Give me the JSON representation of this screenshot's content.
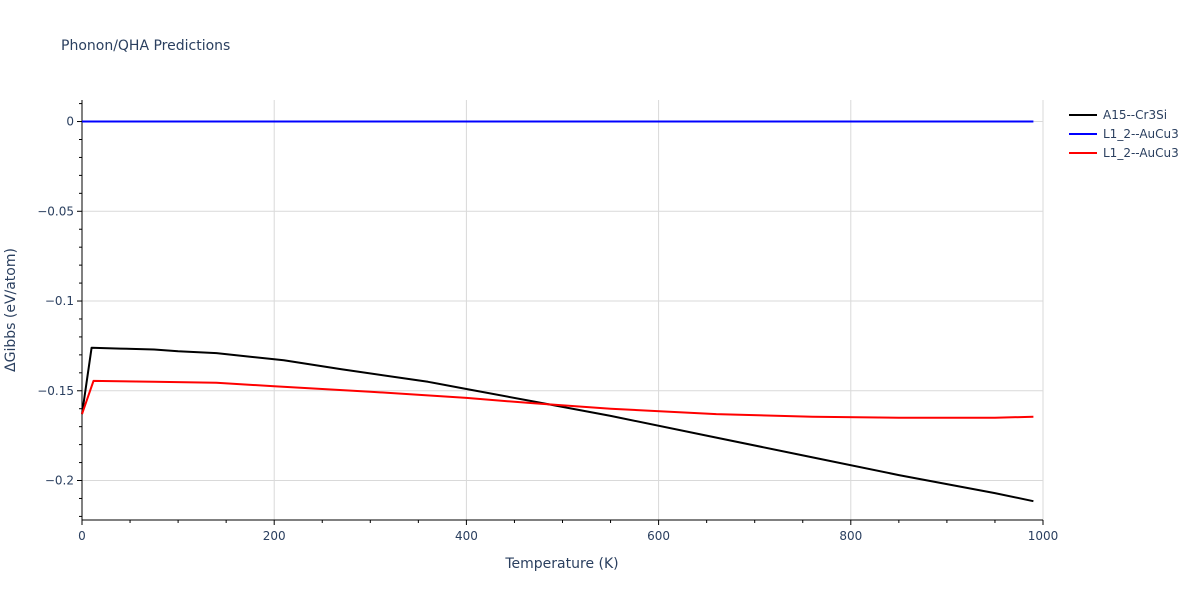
{
  "chart_data": {
    "type": "line",
    "title": "Phonon/QHA Predictions",
    "xlabel": "Temperature (K)",
    "ylabel": "ΔGibbs (eV/atom)",
    "xlim": [
      0,
      1000
    ],
    "ylim": [
      -0.222,
      0.012
    ],
    "x_ticks": [
      0,
      200,
      400,
      600,
      800,
      1000
    ],
    "x_tick_labels": [
      "0",
      "200",
      "400",
      "600",
      "800",
      "1000"
    ],
    "y_ticks": [
      0,
      -0.05,
      -0.1,
      -0.15,
      -0.2
    ],
    "y_tick_labels": [
      "0",
      "−0.05",
      "−0.1",
      "−0.15",
      "−0.2"
    ],
    "grid": true,
    "legend_position": "top-right",
    "series": [
      {
        "name": "A15--Cr3Si",
        "color": "#000000",
        "x": [
          0,
          10,
          40,
          75,
          100,
          140,
          175,
          210,
          270,
          360,
          400,
          470,
          550,
          650,
          750,
          850,
          950,
          990
        ],
        "y": [
          -0.163,
          -0.126,
          -0.1265,
          -0.127,
          -0.128,
          -0.129,
          -0.131,
          -0.133,
          -0.138,
          -0.145,
          -0.149,
          -0.156,
          -0.164,
          -0.175,
          -0.186,
          -0.197,
          -0.207,
          -0.2115
        ]
      },
      {
        "name": "L1_2--AuCu3",
        "color": "#0000ff",
        "x": [
          0,
          10,
          100,
          200,
          300,
          400,
          500,
          600,
          700,
          800,
          900,
          990
        ],
        "y": [
          0,
          0,
          0,
          0,
          0,
          0,
          0,
          0,
          0,
          0,
          0,
          0
        ]
      },
      {
        "name": "L1_2--AuCu3",
        "color": "#ff0000",
        "x": [
          0,
          12,
          75,
          140,
          200,
          300,
          400,
          470,
          550,
          660,
          760,
          850,
          950,
          990
        ],
        "y": [
          -0.163,
          -0.1445,
          -0.145,
          -0.1455,
          -0.1475,
          -0.1505,
          -0.154,
          -0.157,
          -0.16,
          -0.163,
          -0.1645,
          -0.165,
          -0.165,
          -0.1645
        ]
      }
    ]
  }
}
